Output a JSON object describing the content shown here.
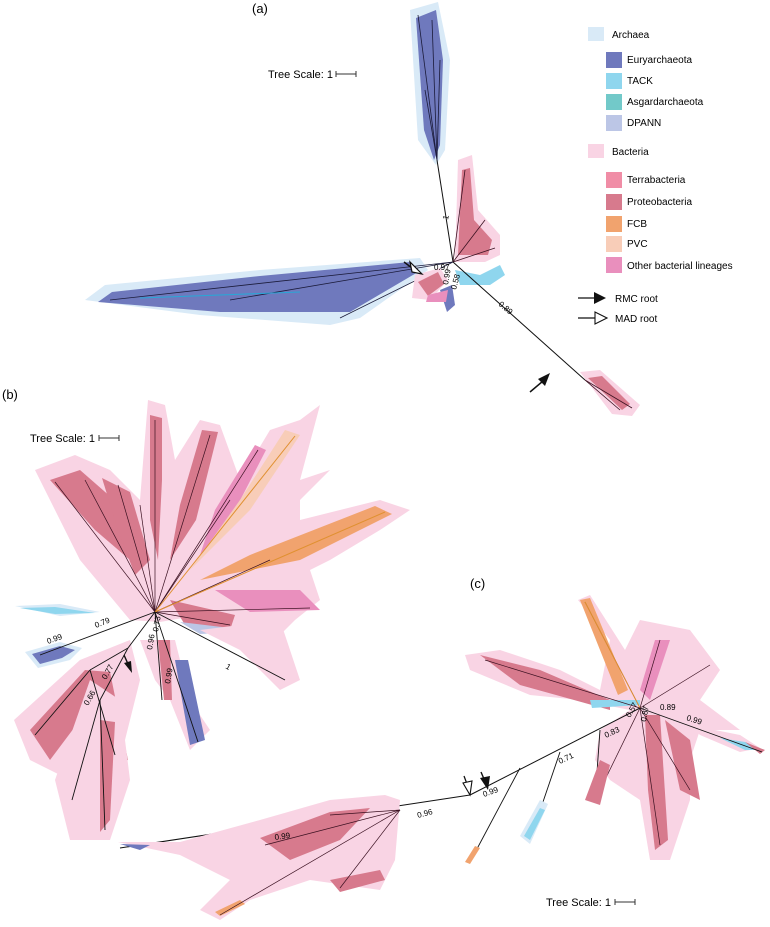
{
  "panels": {
    "a": {
      "label": "(a)",
      "scale_label": "Tree Scale: 1",
      "support": [
        "1",
        "0.97",
        "0.58",
        "0.89",
        "0.99"
      ]
    },
    "b": {
      "label": "(b)",
      "scale_label": "Tree Scale: 1",
      "support": [
        "0.99",
        "0.79",
        "0.77",
        "0.66",
        "0.96",
        "0.73",
        "0.99",
        "1"
      ]
    },
    "c": {
      "label": "(c)",
      "scale_label": "Tree Scale: 1",
      "support": [
        "0.99",
        "0.96",
        "0.99",
        "0.71",
        "0.83",
        "0.57",
        "0.87",
        "0.89",
        "0.99"
      ]
    }
  },
  "legend": {
    "archaea": {
      "label": "Archaea",
      "color": "#d9eaf7"
    },
    "archaea_groups": [
      {
        "label": "Euryarchaeota",
        "color": "#6f79bd"
      },
      {
        "label": "TACK",
        "color": "#8fd6ee"
      },
      {
        "label": "Asgardarchaeota",
        "color": "#72c9c9"
      },
      {
        "label": "DPANN",
        "color": "#bcc6e6"
      }
    ],
    "bacteria": {
      "label": "Bacteria",
      "color": "#f9d4e4"
    },
    "bacteria_groups": [
      {
        "label": "Terrabacteria",
        "color": "#f08da6"
      },
      {
        "label": "Proteobacteria",
        "color": "#d77a8d"
      },
      {
        "label": "FCB",
        "color": "#f1a36e"
      },
      {
        "label": "PVC",
        "color": "#f8cdb8"
      },
      {
        "label": "Other bacterial lineages",
        "color": "#e98fbd"
      }
    ],
    "roots": [
      {
        "label": "RMC root",
        "style": "filled-arrow"
      },
      {
        "label": "MAD root",
        "style": "open-arrow"
      }
    ]
  }
}
